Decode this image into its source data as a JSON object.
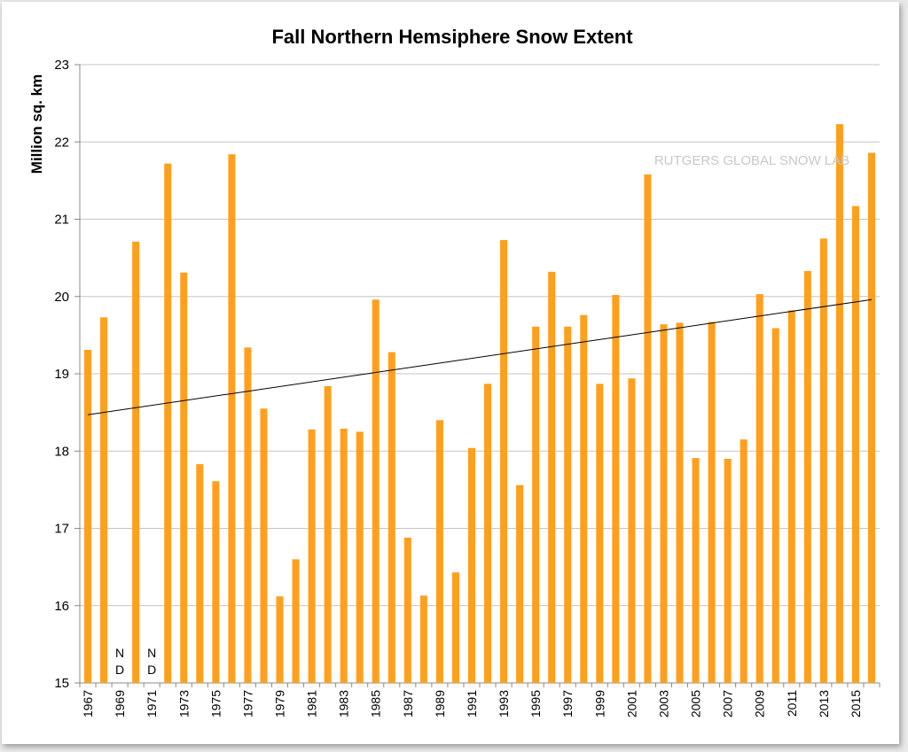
{
  "chart_data": {
    "type": "bar",
    "title": "Fall Northern Hemsiphere Snow Extent",
    "ylabel": "Million sq. km",
    "xlabel": "",
    "watermark": "RUTGERS GLOBAL SNOW LAB",
    "ylim": [
      15,
      23
    ],
    "yticks": [
      15,
      16,
      17,
      18,
      19,
      20,
      21,
      22,
      23
    ],
    "grid": true,
    "trendline": {
      "start": 18.47,
      "end": 19.96
    },
    "categories": [
      1967,
      1968,
      1969,
      1970,
      1971,
      1972,
      1973,
      1974,
      1975,
      1976,
      1977,
      1978,
      1979,
      1980,
      1981,
      1982,
      1983,
      1984,
      1985,
      1986,
      1987,
      1988,
      1989,
      1990,
      1991,
      1992,
      1993,
      1994,
      1995,
      1996,
      1997,
      1998,
      1999,
      2000,
      2001,
      2002,
      2003,
      2004,
      2005,
      2006,
      2007,
      2008,
      2009,
      2010,
      2011,
      2012,
      2013,
      2014,
      2015,
      2016
    ],
    "x_tick_labels": [
      "1967",
      "1969",
      "1971",
      "1973",
      "1975",
      "1977",
      "1979",
      "1981",
      "1983",
      "1985",
      "1987",
      "1989",
      "1991",
      "1993",
      "1995",
      "1997",
      "1999",
      "2001",
      "2003",
      "2005",
      "2007",
      "2009",
      "2011",
      "2013",
      "2015"
    ],
    "values": [
      19.31,
      19.73,
      null,
      20.71,
      null,
      21.72,
      20.31,
      17.83,
      17.61,
      21.84,
      19.34,
      18.55,
      16.12,
      16.6,
      18.28,
      18.84,
      18.29,
      18.25,
      19.96,
      19.28,
      16.88,
      16.13,
      18.4,
      16.43,
      18.04,
      18.87,
      20.73,
      17.56,
      19.61,
      20.32,
      19.61,
      19.76,
      18.87,
      20.02,
      18.94,
      21.58,
      19.64,
      19.66,
      17.91,
      19.67,
      17.9,
      18.15,
      20.03,
      19.59,
      19.82,
      20.33,
      20.75,
      22.23,
      21.17,
      21.86
    ],
    "nd_labels": [
      {
        "year": 1969,
        "text": [
          "N",
          "D"
        ]
      },
      {
        "year": 1971,
        "text": [
          "N",
          "D"
        ]
      }
    ],
    "bar_color": "#ff9f1c"
  }
}
